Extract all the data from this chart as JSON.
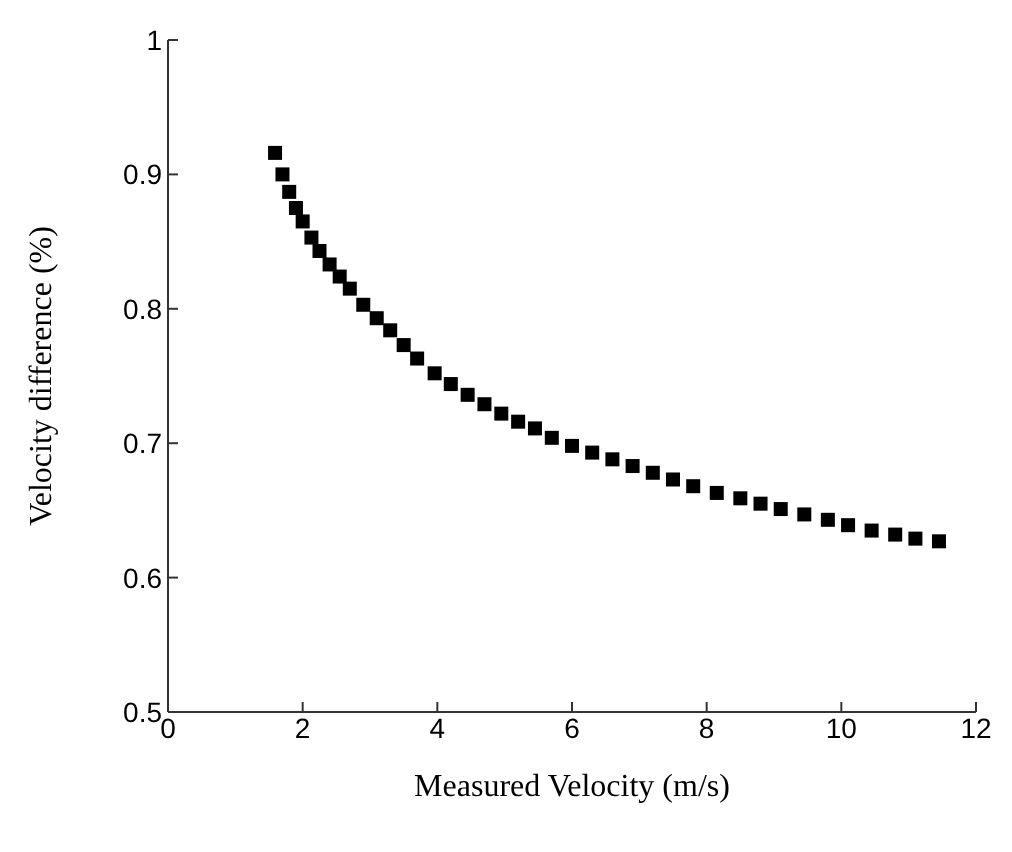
{
  "chart_data": {
    "type": "scatter",
    "xlabel": "Measured Velocity (m/s)",
    "ylabel": "Velocity difference (%)",
    "x": [
      1.59,
      1.7,
      1.8,
      1.9,
      2.0,
      2.13,
      2.25,
      2.4,
      2.55,
      2.7,
      2.9,
      3.1,
      3.3,
      3.5,
      3.7,
      3.96,
      4.2,
      4.45,
      4.7,
      4.95,
      5.2,
      5.45,
      5.7,
      6.0,
      6.3,
      6.6,
      6.9,
      7.2,
      7.5,
      7.8,
      8.15,
      8.5,
      8.8,
      9.1,
      9.45,
      9.8,
      10.1,
      10.45,
      10.8,
      11.1,
      11.45
    ],
    "series": [
      {
        "color": "#000000",
        "values": [
          0.916,
          0.9,
          0.887,
          0.875,
          0.865,
          0.853,
          0.843,
          0.833,
          0.824,
          0.815,
          0.803,
          0.793,
          0.784,
          0.773,
          0.763,
          0.752,
          0.744,
          0.736,
          0.729,
          0.722,
          0.716,
          0.711,
          0.704,
          0.698,
          0.693,
          0.688,
          0.683,
          0.678,
          0.673,
          0.668,
          0.663,
          0.659,
          0.655,
          0.651,
          0.647,
          0.643,
          0.639,
          0.635,
          0.632,
          0.629,
          0.627
        ]
      }
    ],
    "xlim": [
      0,
      12
    ],
    "xticks": [
      0,
      2,
      4,
      6,
      8,
      10,
      12
    ],
    "ylim": [
      0.5,
      1
    ],
    "yticks": [
      0.5,
      0.6,
      0.7,
      0.8,
      0.9,
      1
    ],
    "marker": "square",
    "grid": false
  }
}
